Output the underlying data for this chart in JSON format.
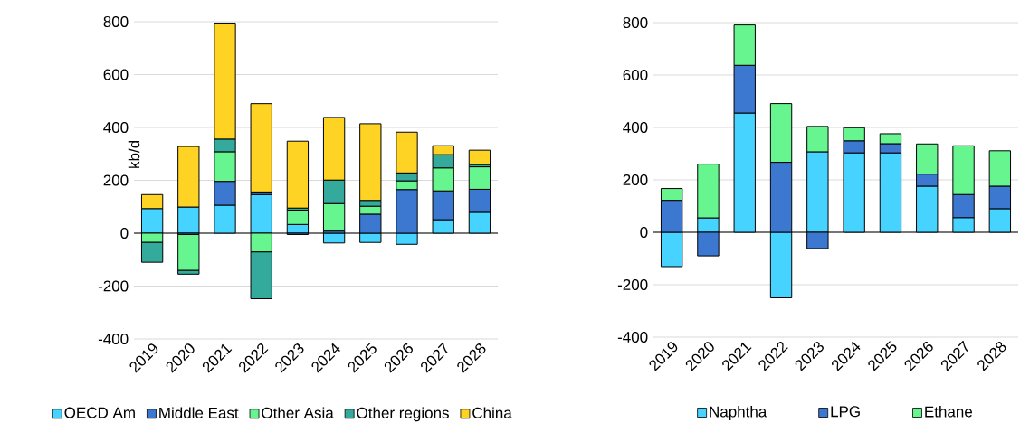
{
  "chart_data": [
    {
      "type": "bar",
      "stacked": true,
      "ylabel": "kb/d",
      "categories": [
        "2019",
        "2020",
        "2021",
        "2022",
        "2023",
        "2024",
        "2025",
        "2026",
        "2027",
        "2028"
      ],
      "ylim": [
        -400,
        800
      ],
      "yticks": [
        -400,
        -200,
        0,
        200,
        400,
        600,
        800
      ],
      "grid": "y",
      "legend": "bottom",
      "series": [
        {
          "name": "OECD Am",
          "color": "#47d3ff",
          "values": [
            93,
            99,
            106,
            146,
            33,
            -37,
            -35,
            -42,
            51,
            79
          ]
        },
        {
          "name": "Middle East",
          "color": "#3c78d0",
          "values": [
            0,
            -5,
            90,
            10,
            -5,
            8,
            72,
            165,
            109,
            87
          ]
        },
        {
          "name": "Other Asia",
          "color": "#66f58f",
          "values": [
            -35,
            -136,
            112,
            -71,
            54,
            104,
            30,
            33,
            87,
            85
          ]
        },
        {
          "name": "Other regions",
          "color": "#33aa9c",
          "values": [
            -75,
            -14,
            48,
            -177,
            8,
            89,
            22,
            30,
            50,
            9
          ]
        },
        {
          "name": "China",
          "color": "#ffd323",
          "values": [
            53,
            229,
            439,
            334,
            253,
            237,
            290,
            154,
            34,
            54
          ]
        }
      ]
    },
    {
      "type": "bar",
      "stacked": true,
      "categories": [
        "2019",
        "2020",
        "2021",
        "2022",
        "2023",
        "2024",
        "2025",
        "2026",
        "2027",
        "2028"
      ],
      "ylim": [
        -400,
        800
      ],
      "yticks": [
        -400,
        -200,
        0,
        200,
        400,
        600,
        800
      ],
      "grid": "y",
      "legend": "bottom",
      "series": [
        {
          "name": "Naphtha",
          "color": "#47d3ff",
          "values": [
            -131,
            55,
            455,
            -250,
            307,
            303,
            303,
            176,
            56,
            90
          ]
        },
        {
          "name": "LPG",
          "color": "#3c78d0",
          "values": [
            122,
            -90,
            182,
            267,
            -62,
            46,
            35,
            46,
            88,
            86
          ]
        },
        {
          "name": "Ethane",
          "color": "#66f58f",
          "values": [
            45,
            205,
            154,
            224,
            97,
            50,
            38,
            115,
            186,
            135
          ]
        }
      ]
    }
  ]
}
